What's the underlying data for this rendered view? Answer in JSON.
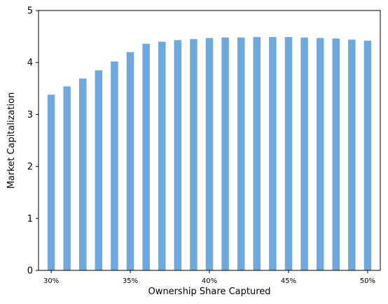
{
  "colors": {
    "bar": "#6fa8dc",
    "axis": "#000000",
    "background": "#ffffff"
  },
  "chart_data": {
    "type": "bar",
    "title": "",
    "xlabel": "Ownership Share Captured",
    "ylabel": "Market Capitalization",
    "x": [
      30,
      31,
      32,
      33,
      34,
      35,
      36,
      37,
      38,
      39,
      40,
      41,
      42,
      43,
      44,
      45,
      46,
      47,
      48,
      49,
      50
    ],
    "values": [
      3.38,
      3.54,
      3.69,
      3.85,
      4.02,
      4.2,
      4.36,
      4.4,
      4.43,
      4.45,
      4.47,
      4.48,
      4.48,
      4.49,
      4.49,
      4.49,
      4.48,
      4.47,
      4.46,
      4.44,
      4.42
    ],
    "ylim": [
      0,
      5
    ],
    "xlim": [
      29.2,
      50.8
    ],
    "yticks": [
      0,
      1,
      2,
      3,
      4,
      5
    ],
    "xticks": [
      30,
      35,
      40,
      45,
      50
    ],
    "xtick_labels": [
      "30%",
      "35%",
      "40%",
      "45%",
      "50%"
    ],
    "grid": false,
    "legend": "none"
  }
}
